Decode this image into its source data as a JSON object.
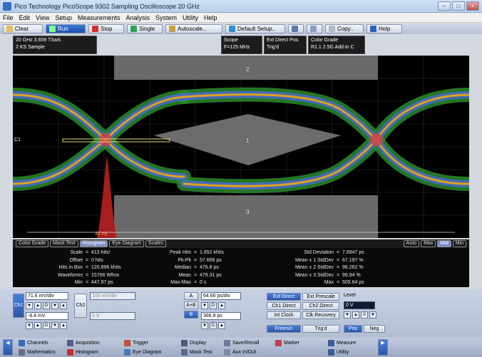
{
  "window": {
    "title": "Pico Technology   PicoScope 9302   Sampling Oscilloscope 20 GHz",
    "controls": [
      "–",
      "□",
      "×"
    ]
  },
  "menu": [
    "File",
    "Edit",
    "View",
    "Setup",
    "Measurements",
    "Analysis",
    "System",
    "Utility",
    "Help"
  ],
  "toolbar": {
    "clear": "Clear",
    "run": "Run",
    "stop": "Stop",
    "single": "Single",
    "autoscale": "Autoscale..",
    "default_setup": "Default Setup..",
    "copy": "Copy..",
    "help": "Help",
    "colors": {
      "clear": "#e0c060",
      "run": "#3a78d8",
      "stop": "#d03030",
      "single": "#30a050",
      "autoscale": "#c8a040",
      "default_setup": "#3090d0",
      "help": "#3060c0"
    }
  },
  "info": {
    "acq_line1": "20 GHz  3.659 TSa/s",
    "acq_line2": "2 KS      Sample",
    "scope_line1": "Scope",
    "scope_line2": "F=125 MHz",
    "trig_line1": "Ext Direct    Pos",
    "trig_line2": "Trig'd",
    "color_line1": "Color Grade",
    "color_line2": "R1.1 2.5G Add-in C"
  },
  "screen": {
    "marker_top": "2",
    "marker_center": "1",
    "marker_bottom": "3",
    "channel_label": "C1",
    "time_label": "31 ns"
  },
  "tabs": {
    "items": [
      "Color Grade",
      "Mask Test",
      "Histogram",
      "Eye Diagram",
      "Scales"
    ],
    "active": "Histogram",
    "right": [
      "Auto",
      "Max",
      "Mid",
      "Min"
    ],
    "right_active": "Mid"
  },
  "stats": {
    "col1": [
      {
        "k": "Scale",
        "v": "413 hits/"
      },
      {
        "k": "Offset",
        "v": "0 hits"
      },
      {
        "k": "Hits in Box",
        "v": "120.896 khits"
      },
      {
        "k": "Waveforms",
        "v": "15766 Wfms"
      },
      {
        "k": "Min",
        "v": "447.97 ps"
      }
    ],
    "col2": [
      {
        "k": "Peak Hits",
        "v": "1.652 khits"
      },
      {
        "k": "Pk-Pk",
        "v": "57.666 ps"
      },
      {
        "k": "Median",
        "v": "476.8 ps"
      },
      {
        "k": "Mean",
        "v": "479.31 ps"
      },
      {
        "k": "Max-Max",
        "v": "0 s"
      }
    ],
    "col3": [
      {
        "k": "Std Deviation",
        "v": "7.6947 ps"
      },
      {
        "k": "Mean ± 1 StdDev",
        "v": "67.197 %"
      },
      {
        "k": "Mean ± 2 StdDev",
        "v": "96.262 %"
      },
      {
        "k": "Mean ± 3 StdDev",
        "v": "99.94 %"
      },
      {
        "k": "Max",
        "v": "505.64 ps"
      }
    ]
  },
  "controls": {
    "ch1_label": "Ch1",
    "ch1_scale": "71.6 mV/div",
    "ch1_offset": "-6.4 mV",
    "ch2_label": "Ch2",
    "ch2_scale": "100 mV/div",
    "ch2_offset": "0 V",
    "timebase_a": "A",
    "timebase_ab": "A+B",
    "timebase_b": "B",
    "timebase_scale": "64.66 ps/div",
    "timebase_delay": "366.8 ps",
    "trigger_buttons": [
      "Ext Direct",
      "Ext Prescale",
      "Ch1 Direct",
      "Ch2 Direct",
      "Int Clock",
      "Clk Recovery"
    ],
    "trigger_active": "Ext Direct",
    "level_label": "Level",
    "level_value": "0 V",
    "freerun": "Freerun",
    "trigd": "Trig'd",
    "pos": "Pos",
    "neg": "Neg",
    "arrows": [
      "▼",
      "▲",
      "D",
      "▼",
      "▲"
    ]
  },
  "bottom_menu": {
    "row1": [
      "Channels",
      "Acquisition",
      "Trigger",
      "Display",
      "Save/Recall",
      "Marker",
      "Measure"
    ],
    "row2": [
      "Mathematics",
      "Histogram",
      "Eye Diagram",
      "Mask Test",
      "Aux In/Out",
      "Utility"
    ]
  }
}
